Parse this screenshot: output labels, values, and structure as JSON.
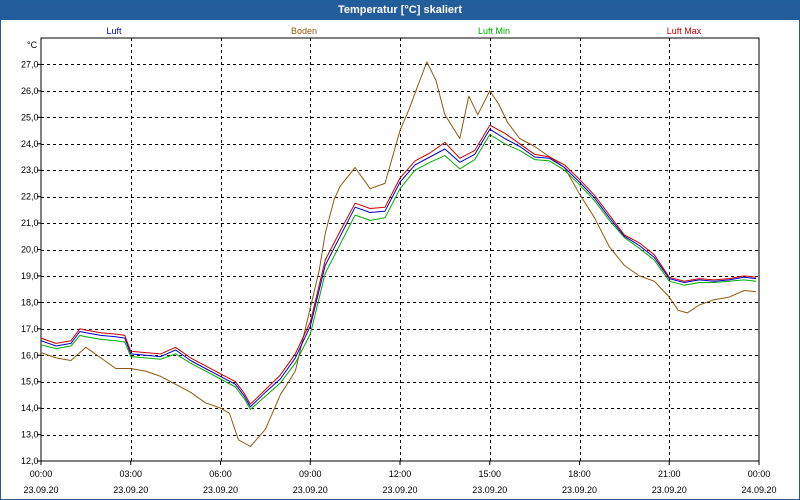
{
  "window": {
    "title": "Temperatur [°C] skaliert"
  },
  "chart_data": {
    "type": "line",
    "title": "Temperatur [°C] skaliert",
    "ylabel": "°C",
    "ylim": [
      12.0,
      28.0
    ],
    "xlim": [
      0,
      24
    ],
    "grid": true,
    "legend_position": "top",
    "x_ticks": [
      {
        "x": 0,
        "time": "00:00",
        "date": "23.09.20"
      },
      {
        "x": 3,
        "time": "03:00",
        "date": "23.09.20"
      },
      {
        "x": 6,
        "time": "06:00",
        "date": "23.09.20"
      },
      {
        "x": 9,
        "time": "09:00",
        "date": "23.09.20"
      },
      {
        "x": 12,
        "time": "12:00",
        "date": "23.09.20"
      },
      {
        "x": 15,
        "time": "15:00",
        "date": "23.09.20"
      },
      {
        "x": 18,
        "time": "18:00",
        "date": "23.09.20"
      },
      {
        "x": 21,
        "time": "21:00",
        "date": "23.09.20"
      },
      {
        "x": 24,
        "time": "00:00",
        "date": "24.09.20"
      }
    ],
    "y_ticks": [
      "12,0",
      "13,0",
      "14,0",
      "15,0",
      "16,0",
      "17,0",
      "18,0",
      "19,0",
      "20,0",
      "21,0",
      "22,0",
      "23,0",
      "24,0",
      "25,0",
      "26,0",
      "27,0"
    ],
    "series": [
      {
        "name": "Luft",
        "color": "#0000cc",
        "x": [
          0,
          0.5,
          1,
          1.3,
          1.5,
          2,
          2.5,
          2.8,
          3,
          3.5,
          4,
          4.5,
          5,
          5.5,
          6,
          6.5,
          6.8,
          7,
          7.5,
          8,
          8.5,
          9,
          9.5,
          10,
          10.5,
          11,
          11.5,
          12,
          12.5,
          13,
          13.5,
          14,
          14.5,
          15,
          15.5,
          16,
          16.5,
          17,
          17.5,
          18,
          18.5,
          19,
          19.5,
          20,
          20.5,
          21,
          21.5,
          22,
          22.5,
          23,
          23.5,
          23.9
        ],
        "values": [
          16.55,
          16.35,
          16.45,
          16.9,
          16.85,
          16.75,
          16.7,
          16.65,
          16.05,
          16.0,
          15.95,
          16.2,
          15.8,
          15.5,
          15.2,
          14.9,
          14.45,
          14.05,
          14.6,
          15.1,
          15.9,
          17.1,
          19.4,
          20.5,
          21.6,
          21.4,
          21.45,
          22.55,
          23.2,
          23.5,
          23.8,
          23.3,
          23.6,
          24.55,
          24.2,
          23.9,
          23.5,
          23.45,
          23.1,
          22.55,
          21.95,
          21.2,
          20.5,
          20.15,
          19.7,
          18.9,
          18.75,
          18.85,
          18.8,
          18.85,
          18.95,
          18.9
        ]
      },
      {
        "name": "Boden",
        "color": "#8b5a10",
        "x": [
          0,
          0.5,
          1,
          1.5,
          2,
          2.5,
          3,
          3.5,
          4,
          4.5,
          5,
          5.5,
          6,
          6.3,
          6.6,
          7,
          7.5,
          8,
          8.5,
          9,
          9.3,
          9.5,
          9.8,
          10,
          10.5,
          11,
          11.5,
          12,
          12.3,
          12.6,
          12.9,
          13.2,
          13.5,
          14,
          14.3,
          14.6,
          15,
          15.3,
          15.6,
          16,
          16.5,
          17,
          17.5,
          18,
          18.5,
          19,
          19.5,
          20,
          20.5,
          21,
          21.3,
          21.6,
          22,
          22.5,
          23,
          23.5,
          23.9
        ],
        "values": [
          16.1,
          15.9,
          15.8,
          16.3,
          15.9,
          15.5,
          15.5,
          15.4,
          15.2,
          14.9,
          14.6,
          14.2,
          14.0,
          13.8,
          12.8,
          12.55,
          13.2,
          14.5,
          15.4,
          17.8,
          19.2,
          20.6,
          21.9,
          22.4,
          23.1,
          22.3,
          22.5,
          24.5,
          25.3,
          26.2,
          27.1,
          26.4,
          25.1,
          24.2,
          25.8,
          25.1,
          26.0,
          25.5,
          24.8,
          24.2,
          23.9,
          23.5,
          23.1,
          22.1,
          21.2,
          20.1,
          19.4,
          19.0,
          18.8,
          18.2,
          17.7,
          17.6,
          17.9,
          18.1,
          18.2,
          18.45,
          18.4
        ]
      },
      {
        "name": "Luft Min",
        "color": "#00aa00",
        "x": [
          0,
          0.5,
          1,
          1.3,
          1.5,
          2,
          2.5,
          2.8,
          3,
          3.5,
          4,
          4.5,
          5,
          5.5,
          6,
          6.5,
          6.8,
          7,
          7.5,
          8,
          8.5,
          9,
          9.5,
          10,
          10.5,
          11,
          11.5,
          12,
          12.5,
          13,
          13.5,
          14,
          14.5,
          15,
          15.5,
          16,
          16.5,
          17,
          17.5,
          18,
          18.5,
          19,
          19.5,
          20,
          20.5,
          21,
          21.5,
          22,
          22.5,
          23,
          23.5,
          23.9
        ],
        "values": [
          16.4,
          16.25,
          16.35,
          16.75,
          16.7,
          16.6,
          16.55,
          16.5,
          15.95,
          15.9,
          15.85,
          16.05,
          15.7,
          15.4,
          15.1,
          14.8,
          14.35,
          13.95,
          14.45,
          14.95,
          15.7,
          16.8,
          19.1,
          20.2,
          21.3,
          21.1,
          21.2,
          22.3,
          23.0,
          23.3,
          23.55,
          23.05,
          23.4,
          24.35,
          24.0,
          23.75,
          23.4,
          23.35,
          23.0,
          22.45,
          21.85,
          21.1,
          20.45,
          20.05,
          19.6,
          18.8,
          18.65,
          18.75,
          18.75,
          18.8,
          18.85,
          18.8
        ]
      },
      {
        "name": "Luft Max",
        "color": "#cc0000",
        "x": [
          0,
          0.5,
          1,
          1.3,
          1.5,
          2,
          2.5,
          2.8,
          3,
          3.5,
          4,
          4.5,
          5,
          5.5,
          6,
          6.5,
          6.8,
          7,
          7.5,
          8,
          8.5,
          9,
          9.5,
          10,
          10.5,
          11,
          11.5,
          12,
          12.5,
          13,
          13.5,
          14,
          14.5,
          15,
          15.5,
          16,
          16.5,
          17,
          17.5,
          18,
          18.5,
          19,
          19.5,
          20,
          20.5,
          21,
          21.5,
          22,
          22.5,
          23,
          23.5,
          23.9
        ],
        "values": [
          16.65,
          16.45,
          16.55,
          17.0,
          16.95,
          16.85,
          16.8,
          16.75,
          16.15,
          16.1,
          16.05,
          16.3,
          15.9,
          15.6,
          15.3,
          15.0,
          14.55,
          14.15,
          14.7,
          15.25,
          16.05,
          17.25,
          19.6,
          20.7,
          21.75,
          21.55,
          21.6,
          22.7,
          23.35,
          23.65,
          24.05,
          23.45,
          23.75,
          24.7,
          24.4,
          24.0,
          23.6,
          23.5,
          23.2,
          22.65,
          22.05,
          21.3,
          20.55,
          20.25,
          19.8,
          18.95,
          18.8,
          18.9,
          18.85,
          18.9,
          19.0,
          18.95
        ]
      }
    ]
  }
}
